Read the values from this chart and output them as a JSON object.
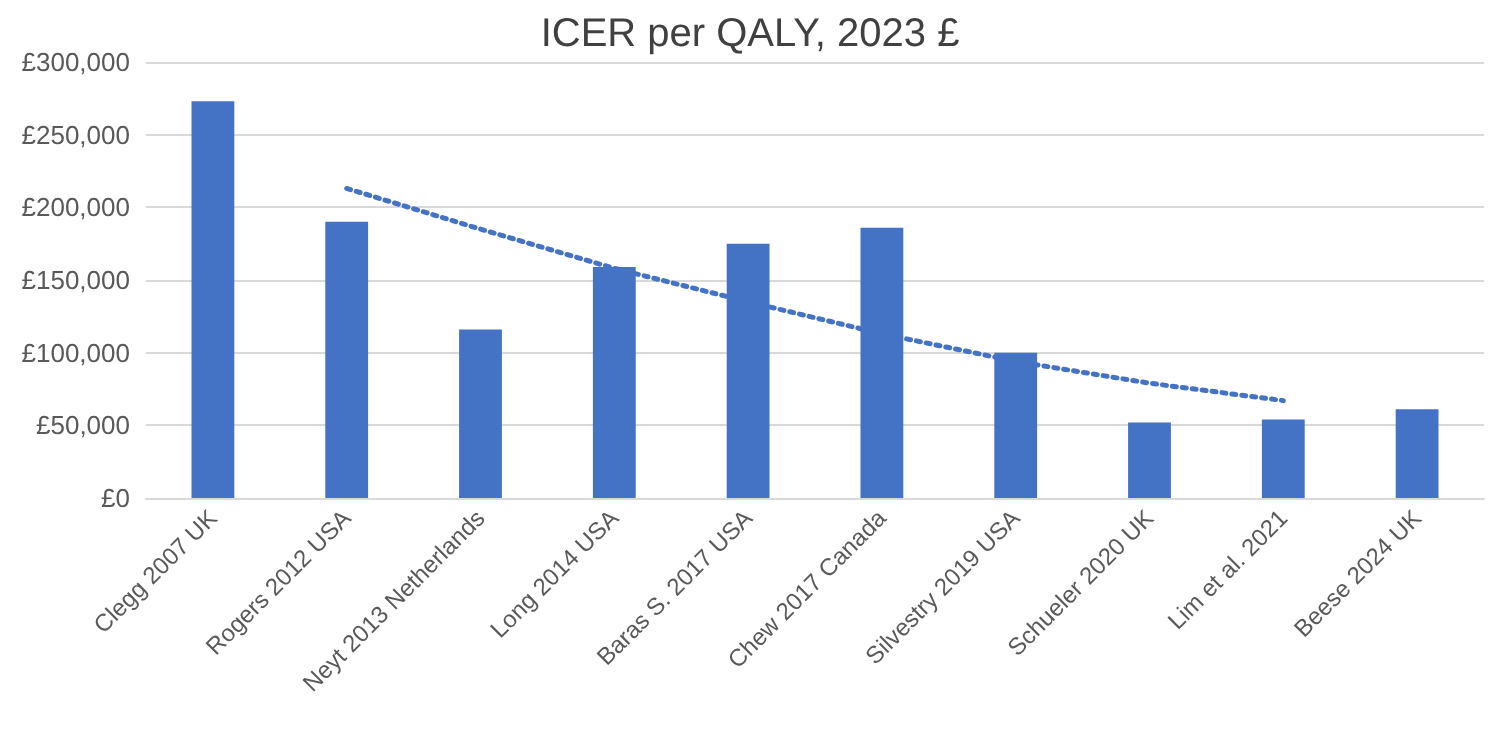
{
  "chart_data": {
    "type": "bar",
    "title": "ICER per QALY, 2023 £",
    "categories": [
      "Clegg 2007 UK",
      "Rogers 2012 USA",
      "Neyt 2013 Netherlands",
      "Long 2014 USA",
      "Baras S. 2017 USA",
      "Chew 2017 Canada",
      "Silvestry 2019 USA",
      "Schueler 2020 UK",
      "Lim et al. 2021",
      "Beese 2024 UK"
    ],
    "series": [
      {
        "color": "#4472c4",
        "values": [
          273000,
          190000,
          116000,
          159000,
          175000,
          186000,
          100000,
          52000,
          54000,
          61000
        ]
      },
      {
        "type": "line",
        "color": "#4472c4",
        "line_style": "dotted",
        "marker": "none",
        "values": [
          null,
          213000,
          185000,
          158000,
          135000,
          113000,
          94000,
          79000,
          67000,
          null
        ]
      }
    ],
    "ylim": [
      0,
      300000
    ],
    "yticks": [
      {
        "value": 0,
        "label": "£0"
      },
      {
        "value": 50000,
        "label": "£50,000"
      },
      {
        "value": 100000,
        "label": "£100,000"
      },
      {
        "value": 150000,
        "label": "£150,000"
      },
      {
        "value": 200000,
        "label": "£200,000"
      },
      {
        "value": 250000,
        "label": "£250,000"
      },
      {
        "value": 300000,
        "label": "£300,000"
      }
    ],
    "grid": "y"
  }
}
